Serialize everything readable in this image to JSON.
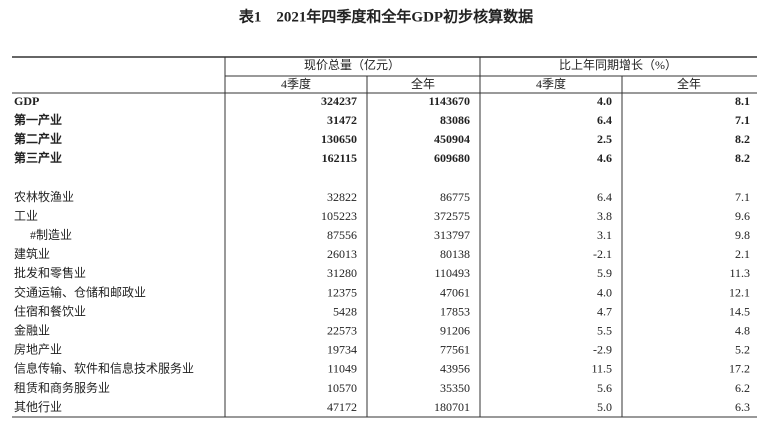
{
  "header": {
    "title": "表1　2021年四季度和全年GDP初步核算数据"
  },
  "table": {
    "groups": [
      "现价总量（亿元）",
      "比上年同期增长（%）"
    ],
    "columns": [
      "4季度",
      "全年",
      "4季度",
      "全年"
    ],
    "summary_rows": [
      [
        "GDP",
        "324237",
        "1143670",
        "4.0",
        "8.1"
      ],
      [
        "第一产业",
        "31472",
        "83086",
        "6.4",
        "7.1"
      ],
      [
        "第二产业",
        "130650",
        "450904",
        "2.5",
        "8.2"
      ],
      [
        "第三产业",
        "162115",
        "609680",
        "4.6",
        "8.2"
      ]
    ],
    "detail_rows": [
      [
        "农林牧渔业",
        "32822",
        "86775",
        "6.4",
        "7.1"
      ],
      [
        "工业",
        "105223",
        "372575",
        "3.8",
        "9.6"
      ],
      [
        "#制造业",
        "87556",
        "313797",
        "3.1",
        "9.8"
      ],
      [
        "建筑业",
        "26013",
        "80138",
        "-2.1",
        "2.1"
      ],
      [
        "批发和零售业",
        "31280",
        "110493",
        "5.9",
        "11.3"
      ],
      [
        "交通运输、仓储和邮政业",
        "12375",
        "47061",
        "4.0",
        "12.1"
      ],
      [
        "住宿和餐饮业",
        "5428",
        "17853",
        "4.7",
        "14.5"
      ],
      [
        "金融业",
        "22573",
        "91206",
        "5.5",
        "4.8"
      ],
      [
        "房地产业",
        "19734",
        "77561",
        "-2.9",
        "5.2"
      ],
      [
        "信息传输、软件和信息技术服务业",
        "11049",
        "43956",
        "11.5",
        "17.2"
      ],
      [
        "租赁和商务服务业",
        "10570",
        "35350",
        "5.6",
        "6.2"
      ],
      [
        "其他行业",
        "47172",
        "180701",
        "5.0",
        "6.3"
      ]
    ]
  }
}
